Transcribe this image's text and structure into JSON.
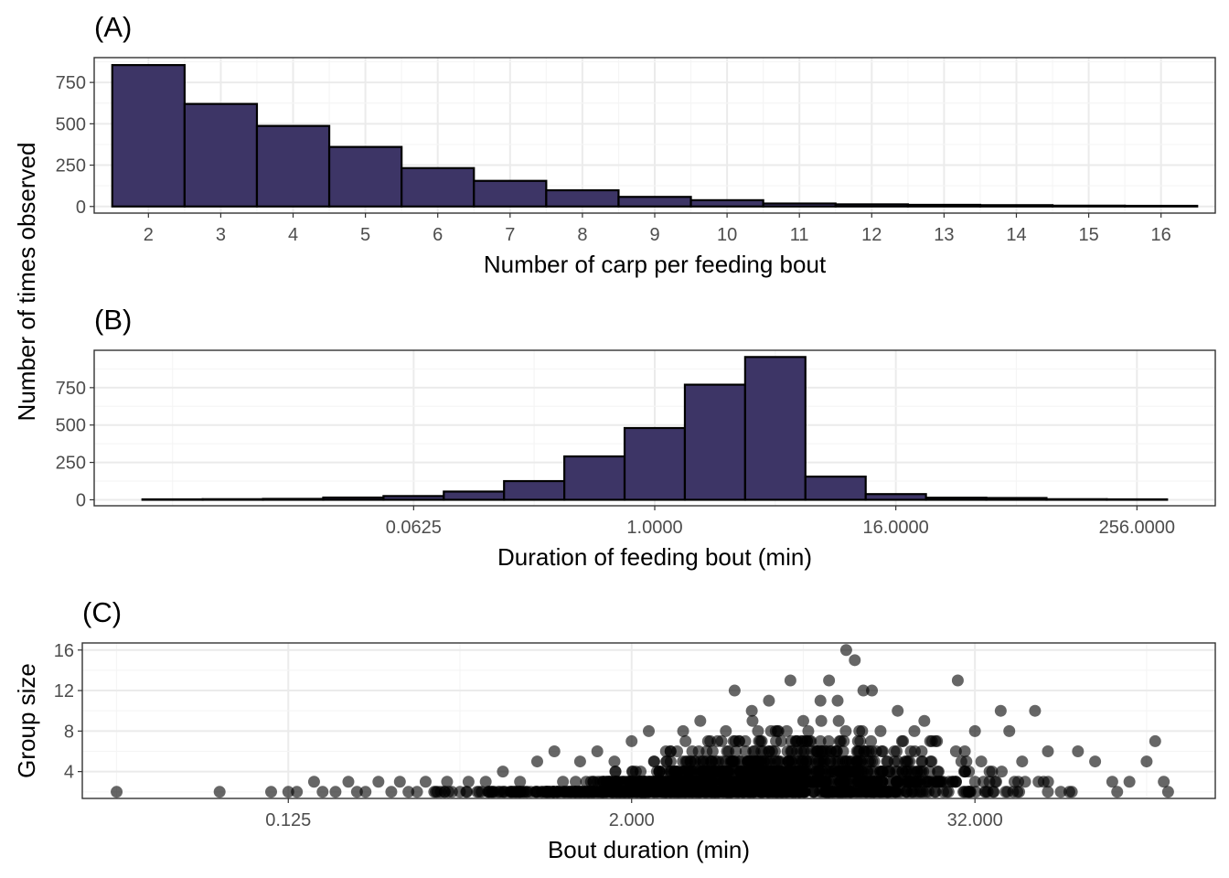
{
  "figure": {
    "shared_ylabel": "Number of times observed",
    "colors": {
      "bar_fill": "#3d3566",
      "bar_stroke": "#000000",
      "panel_border": "#333333",
      "grid_major": "#ebebeb",
      "grid_minor": "#f5f5f5",
      "tick_text": "#4d4d4d",
      "point": "#000000"
    }
  },
  "chart_data": [
    {
      "id": "A",
      "tag": "(A)",
      "type": "bar",
      "xlabel": "Number of carp per feeding bout",
      "ylabel": "Number of times observed",
      "x_ticks": [
        "2",
        "3",
        "4",
        "5",
        "6",
        "7",
        "8",
        "9",
        "10",
        "11",
        "12",
        "13",
        "14",
        "15",
        "16"
      ],
      "categories": [
        2,
        3,
        4,
        5,
        6,
        7,
        8,
        9,
        10,
        11,
        12,
        13,
        14,
        15,
        16
      ],
      "values": [
        855,
        620,
        487,
        360,
        232,
        155,
        98,
        58,
        38,
        18,
        13,
        10,
        8,
        5,
        4
      ],
      "xlim": [
        1.25,
        16.75
      ],
      "ylim": [
        -40,
        900
      ],
      "y_ticks": [
        0,
        250,
        500,
        750
      ],
      "y_tick_labels": [
        "0",
        "250",
        "500",
        "750"
      ],
      "grid": true
    },
    {
      "id": "B",
      "tag": "(B)",
      "type": "bar",
      "xlabel": "Duration of feeding bout (min)",
      "ylabel": "Number of times observed",
      "x_scale": "log2",
      "x_tick_values": [
        0.0625,
        1,
        16,
        256
      ],
      "x_tick_labels": [
        "0.0625",
        "1.0000",
        "16.0000",
        "256.0000"
      ],
      "bin_edges_log2": [
        -8.5,
        -7.5,
        -6.5,
        -5.5,
        -4.5,
        -3.5,
        -2.5,
        -1.5,
        -0.5,
        0.5,
        1.5,
        2.5,
        3.5,
        4.5,
        5.5,
        6.5,
        7.5,
        8.5
      ],
      "values": [
        3,
        4,
        6,
        15,
        25,
        55,
        125,
        290,
        480,
        770,
        955,
        155,
        38,
        14,
        12,
        4,
        3
      ],
      "xlim_log2": [
        -9.3,
        9.3
      ],
      "ylim": [
        -40,
        1000
      ],
      "y_ticks": [
        0,
        250,
        500,
        750
      ],
      "y_tick_labels": [
        "0",
        "250",
        "500",
        "750"
      ],
      "grid": true
    },
    {
      "id": "C",
      "tag": "(C)",
      "type": "scatter",
      "xlabel": "Bout duration (min)",
      "ylabel": "Group size",
      "x_scale": "log2",
      "x_tick_values": [
        0.125,
        2,
        32
      ],
      "x_tick_labels": [
        "0.125",
        "2.000",
        "32.000"
      ],
      "xlim_log2": [
        -5.4,
        7.8
      ],
      "ylim": [
        1.35,
        16.7
      ],
      "y_ticks": [
        4,
        8,
        12,
        16
      ],
      "y_tick_labels": [
        "4",
        "8",
        "12",
        "16"
      ],
      "point_alpha": 0.6,
      "grid": true,
      "points_log2x_y": [
        [
          -5.0,
          2
        ],
        [
          -3.8,
          2
        ],
        [
          -3.2,
          2
        ],
        [
          -3.0,
          2
        ],
        [
          -2.9,
          2
        ],
        [
          -2.7,
          3
        ],
        [
          -2.6,
          2
        ],
        [
          -2.45,
          2
        ],
        [
          -2.3,
          3
        ],
        [
          -2.2,
          2
        ],
        [
          -2.1,
          2
        ],
        [
          -1.95,
          3
        ],
        [
          -1.8,
          2
        ],
        [
          -1.7,
          3
        ],
        [
          -1.6,
          2
        ],
        [
          -1.5,
          2
        ],
        [
          -1.4,
          3
        ],
        [
          -1.3,
          2
        ],
        [
          -1.15,
          3
        ],
        [
          -1.0,
          2
        ],
        [
          -0.9,
          3
        ],
        [
          -0.8,
          2
        ],
        [
          -0.7,
          3
        ],
        [
          -0.5,
          4
        ],
        [
          -0.4,
          2
        ],
        [
          -0.3,
          3
        ],
        [
          -0.1,
          5
        ],
        [
          0.0,
          2
        ],
        [
          0.1,
          6
        ],
        [
          0.2,
          3
        ],
        [
          0.4,
          5
        ],
        [
          0.6,
          6
        ],
        [
          0.5,
          2
        ],
        [
          0.8,
          5
        ],
        [
          1.0,
          7
        ],
        [
          1.2,
          8
        ],
        [
          0.9,
          3
        ],
        [
          1.4,
          6
        ],
        [
          1.6,
          8
        ],
        [
          1.8,
          9
        ],
        [
          1.5,
          4
        ],
        [
          2.0,
          7
        ],
        [
          2.2,
          12
        ],
        [
          2.4,
          10
        ],
        [
          2.6,
          11
        ],
        [
          2.7,
          8
        ],
        [
          2.85,
          13
        ],
        [
          3.0,
          9
        ],
        [
          3.2,
          11
        ],
        [
          3.3,
          13
        ],
        [
          3.5,
          16
        ],
        [
          3.6,
          15
        ],
        [
          3.4,
          11
        ],
        [
          3.7,
          12
        ],
        [
          3.8,
          12
        ],
        [
          3.9,
          8
        ],
        [
          4.1,
          10
        ],
        [
          4.3,
          6
        ],
        [
          4.5,
          7
        ],
        [
          4.8,
          13
        ],
        [
          4.9,
          5
        ],
        [
          5.0,
          8
        ],
        [
          5.1,
          3
        ],
        [
          5.3,
          10
        ],
        [
          5.4,
          8
        ],
        [
          5.55,
          5
        ],
        [
          5.7,
          10
        ],
        [
          5.85,
          6
        ],
        [
          6.0,
          2
        ],
        [
          6.2,
          6
        ],
        [
          6.4,
          5
        ],
        [
          6.6,
          3
        ],
        [
          6.8,
          3
        ],
        [
          7.0,
          5
        ],
        [
          7.1,
          7
        ],
        [
          7.2,
          3
        ],
        [
          7.25,
          2
        ],
        [
          7.9,
          5
        ],
        [
          4.6,
          3
        ],
        [
          5.2,
          4
        ],
        [
          5.8,
          3
        ],
        [
          6.1,
          2
        ],
        [
          4.0,
          4
        ],
        [
          4.2,
          5
        ]
      ]
    }
  ]
}
